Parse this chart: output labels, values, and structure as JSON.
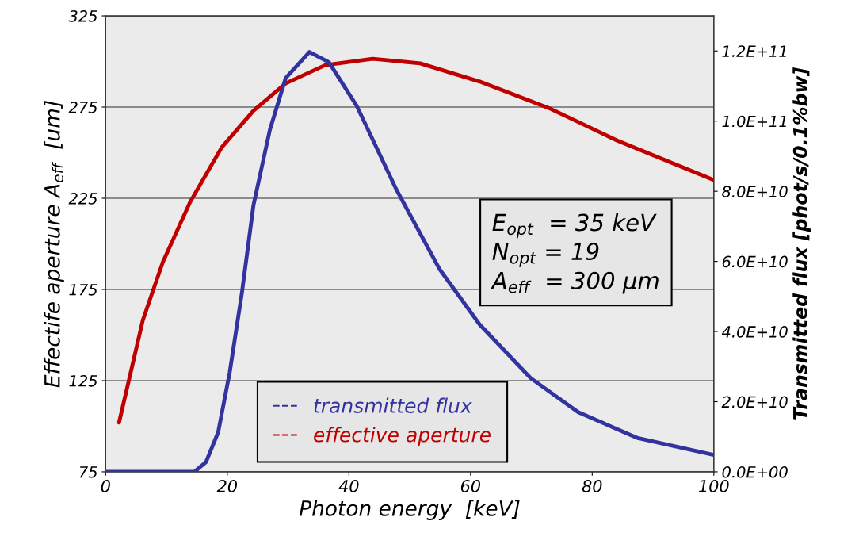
{
  "chart_data": {
    "type": "line",
    "xlabel": "Photon energy  [keV]",
    "ylabel": "Effectife aperture A$_{eff}$  [um]",
    "y2label": "Transmitted flux [phot/s/0.1%bw]",
    "series": [
      {
        "name": "transmitted flux",
        "color": "#3333a0",
        "axis": "y2",
        "x": [
          0,
          5,
          10,
          14,
          14.6,
          16.5,
          18.5,
          20.4,
          22.4,
          24.3,
          27.0,
          29.6,
          33.5,
          36.7,
          41.3,
          47.8,
          54.9,
          61.5,
          69.9,
          77.7,
          87.5,
          100
        ],
        "values": [
          0,
          0,
          0,
          0,
          0,
          2800000000.0,
          11300000000.0,
          28400000000.0,
          51000000000.0,
          76000000000.0,
          97500000000.0,
          112300000000.0,
          119700000000.0,
          116800000000.0,
          104300000000.0,
          80500000000.0,
          57800000000.0,
          42000000000.0,
          26700000000.0,
          17000000000.0,
          9600000000.0,
          4800000000.0
        ]
      },
      {
        "name": "effective aperture",
        "color": "#c00000",
        "x": [
          2.2,
          6.1,
          9.4,
          13.9,
          19.1,
          24.3,
          29.6,
          36.1,
          43.9,
          51.7,
          61.5,
          73.2,
          84.2,
          100
        ],
        "values": [
          102,
          158,
          190,
          223,
          253,
          273,
          288,
          298,
          301.5,
          299,
          289,
          274,
          256.5,
          235
        ]
      }
    ],
    "xlim": [
      0,
      100
    ],
    "xticks": [
      0,
      20,
      40,
      60,
      80,
      100
    ],
    "ylim": [
      75,
      325
    ],
    "yticks": [
      75,
      125,
      175,
      225,
      275,
      325
    ],
    "y2lim": [
      0,
      130000000000.0
    ],
    "y2ticks": [
      {
        "value": 0,
        "label": "0.0E+00"
      },
      {
        "value": 20000000000.0,
        "label": "2.0E+10"
      },
      {
        "value": 40000000000.0,
        "label": "4.0E+10"
      },
      {
        "value": 60000000000.0,
        "label": "6.0E+10"
      },
      {
        "value": 80000000000.0,
        "label": "8.0E+10"
      },
      {
        "value": 100000000000.0,
        "label": "1.0E+11"
      },
      {
        "value": 120000000000.0,
        "label": "1.2E+11"
      }
    ],
    "grid": "y",
    "legend": "bottom",
    "line_style": "solid",
    "marker": "none",
    "annotations": [
      "E$_{opt}$  = 35 keV\nN$_{opt}$ = 19\nA$_{eff}$  = 300 µm"
    ]
  }
}
